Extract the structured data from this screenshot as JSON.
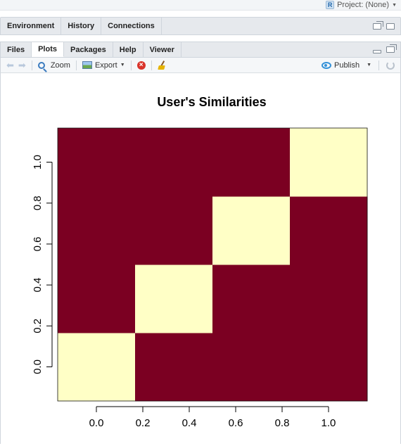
{
  "project": {
    "label": "Project: (None)",
    "icon": "r-project-icon"
  },
  "env_pane": {
    "tabs": [
      "Environment",
      "History",
      "Connections"
    ]
  },
  "files_pane": {
    "tabs": [
      "Files",
      "Plots",
      "Packages",
      "Help",
      "Viewer"
    ],
    "active_tab": "Plots"
  },
  "toolbar": {
    "zoom_label": "Zoom",
    "export_label": "Export",
    "publish_label": "Publish"
  },
  "colors": {
    "high": "#7b0022",
    "low": "#ffffc6"
  },
  "chart_data": {
    "type": "heatmap",
    "title": "User's Similarities",
    "xlabel": "",
    "ylabel": "",
    "x_ticks": [
      "0.0",
      "0.2",
      "0.4",
      "0.6",
      "0.8",
      "1.0"
    ],
    "y_ticks": [
      "0.0",
      "0.2",
      "0.4",
      "0.6",
      "0.8",
      "1.0"
    ],
    "rows": 4,
    "cols": 4,
    "matrix": [
      [
        1,
        0,
        0,
        0
      ],
      [
        0,
        1,
        0,
        0
      ],
      [
        0,
        0,
        1,
        0
      ],
      [
        0,
        0,
        0,
        1
      ]
    ],
    "xlim": [
      -0.1667,
      1.1667
    ],
    "ylim": [
      -0.1667,
      1.1667
    ]
  }
}
